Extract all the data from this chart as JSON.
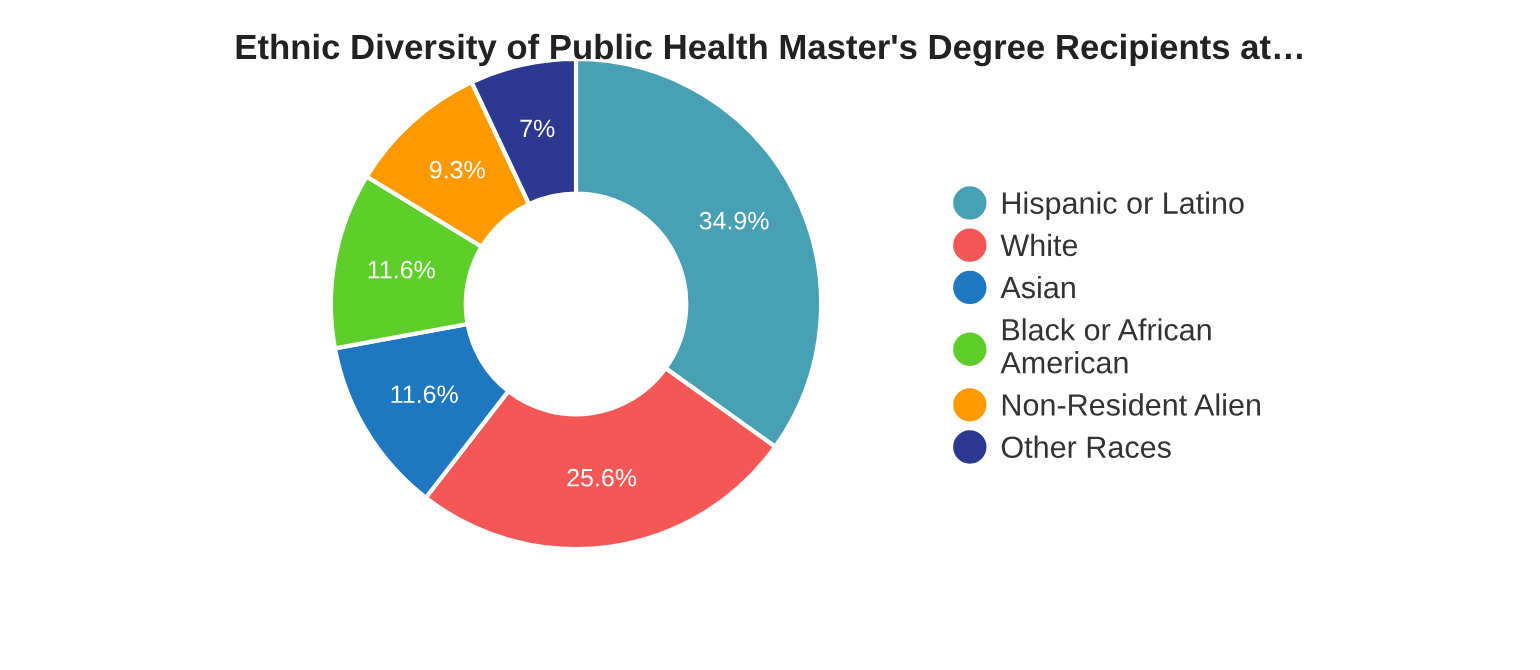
{
  "chart_data": {
    "type": "donut",
    "title": "Ethnic Diversity of Public Health Master's Degree Recipients at…",
    "categories": [
      "Hispanic or Latino",
      "White",
      "Asian",
      "Black or African American",
      "Non-Resident Alien",
      "Other Races"
    ],
    "values": [
      34.9,
      25.6,
      11.6,
      11.6,
      9.3,
      7
    ],
    "colors": [
      "#47a0b3",
      "#f55656",
      "#1f77c0",
      "#5ece2a",
      "#ff9900",
      "#2b3990"
    ],
    "value_labels": [
      "34.9%",
      "25.6%",
      "11.6%",
      "11.6%",
      "9.3%",
      "7%"
    ],
    "legend": "right"
  }
}
